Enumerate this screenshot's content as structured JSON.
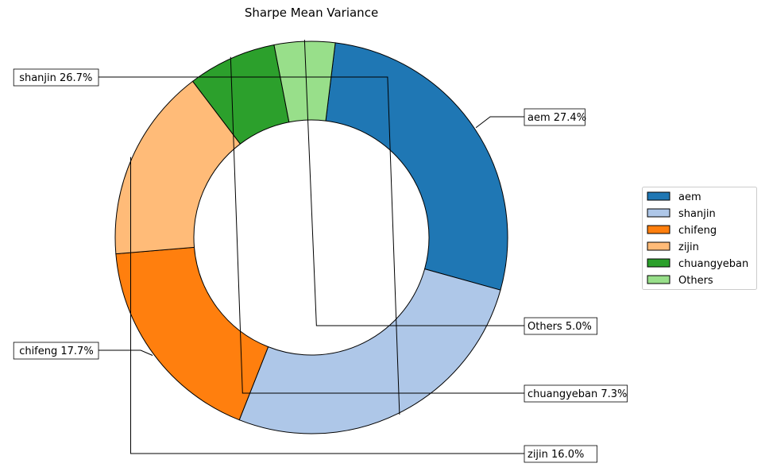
{
  "chart_data": {
    "type": "pie",
    "donut": true,
    "title": "Sharpe Mean Variance",
    "slices": [
      {
        "label": "aem",
        "value": 27.4,
        "display": "27.4%",
        "color": "#1f77b4"
      },
      {
        "label": "shanjin",
        "value": 26.7,
        "display": "26.7%",
        "color": "#aec7e8"
      },
      {
        "label": "chifeng",
        "value": 17.7,
        "display": "17.7%",
        "color": "#ff7f0e"
      },
      {
        "label": "zijin",
        "value": 16.0,
        "display": "16.0%",
        "color": "#ffbb78"
      },
      {
        "label": "chuangyeban",
        "value": 7.3,
        "display": "7.3%",
        "color": "#2ca02c"
      },
      {
        "label": "Others",
        "value": 5.0,
        "display": "5.0%",
        "color": "#98df8a"
      }
    ],
    "start_angle_deg": 83,
    "direction": "clockwise",
    "legend_position": "center-right",
    "annotations": "boxed labels with elbow leader lines"
  }
}
